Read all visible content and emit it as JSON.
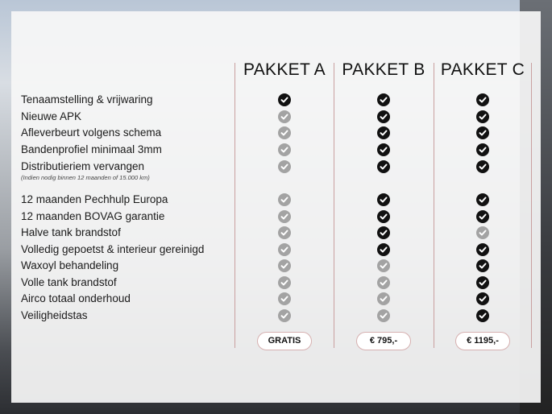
{
  "packages": [
    {
      "name": "PAKKET A",
      "price": "GRATIS"
    },
    {
      "name": "PAKKET B",
      "price": "€ 795,-"
    },
    {
      "name": "PAKKET C",
      "price": "€ 1195,-"
    }
  ],
  "note": "(Indien nodig binnen 12 maanden of 15.000 km)",
  "features": [
    {
      "label": "Tenaamstelling & vrijwaring",
      "included": [
        true,
        true,
        true
      ]
    },
    {
      "label": "Nieuwe APK",
      "included": [
        false,
        true,
        true
      ]
    },
    {
      "label": "Afleverbeurt volgens schema",
      "included": [
        false,
        true,
        true
      ]
    },
    {
      "label": "Bandenprofiel minimaal 3mm",
      "included": [
        false,
        true,
        true
      ]
    },
    {
      "label": "Distributieriem vervangen",
      "included": [
        false,
        true,
        true
      ]
    },
    {
      "label": "12 maanden Pechhulp Europa",
      "included": [
        false,
        true,
        true
      ]
    },
    {
      "label": "12 maanden BOVAG garantie",
      "included": [
        false,
        true,
        true
      ]
    },
    {
      "label": "Halve tank brandstof",
      "included": [
        false,
        true,
        false
      ]
    },
    {
      "label": "Volledig gepoetst & interieur gereinigd",
      "included": [
        false,
        true,
        true
      ]
    },
    {
      "label": "Waxoyl behandeling",
      "included": [
        false,
        false,
        true
      ]
    },
    {
      "label": "Volle tank brandstof",
      "included": [
        false,
        false,
        true
      ]
    },
    {
      "label": "Airco totaal onderhoud",
      "included": [
        false,
        false,
        true
      ]
    },
    {
      "label": "Veiligheidstas",
      "included": [
        false,
        false,
        true
      ]
    }
  ],
  "colors": {
    "included": "#111111",
    "not_included": "#a3a3a3",
    "divider": "#c9a0a0"
  }
}
